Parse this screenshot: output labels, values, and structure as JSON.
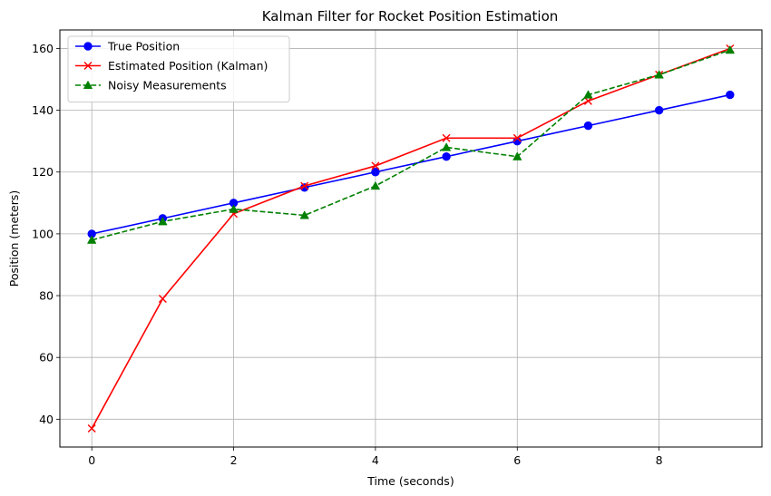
{
  "chart_data": {
    "type": "line",
    "title": "Kalman Filter for Rocket Position Estimation",
    "xlabel": "Time (seconds)",
    "ylabel": "Position (meters)",
    "x": [
      0,
      1,
      2,
      3,
      4,
      5,
      6,
      7,
      8,
      9
    ],
    "xlim": [
      -0.45,
      9.45
    ],
    "ylim": [
      31,
      166
    ],
    "xticks": [
      0,
      2,
      4,
      6,
      8
    ],
    "yticks": [
      40,
      60,
      80,
      100,
      120,
      140,
      160
    ],
    "grid": true,
    "legend_position": "upper-left",
    "series": [
      {
        "name": "True Position",
        "color": "#0000ff",
        "marker": "circle",
        "dash": "solid",
        "values": [
          100,
          105,
          110,
          115,
          120,
          125,
          130,
          135,
          140,
          145
        ]
      },
      {
        "name": "Estimated Position (Kalman)",
        "color": "#ff0000",
        "marker": "x",
        "dash": "solid",
        "values": [
          37,
          79,
          106.5,
          115.5,
          122,
          131,
          131,
          143,
          151.5,
          160
        ]
      },
      {
        "name": "Noisy Measurements",
        "color": "#008000",
        "marker": "triangle",
        "dash": "dashed",
        "values": [
          98,
          104,
          108,
          106,
          115.5,
          128,
          125,
          145,
          151.5,
          159.5
        ]
      }
    ]
  }
}
